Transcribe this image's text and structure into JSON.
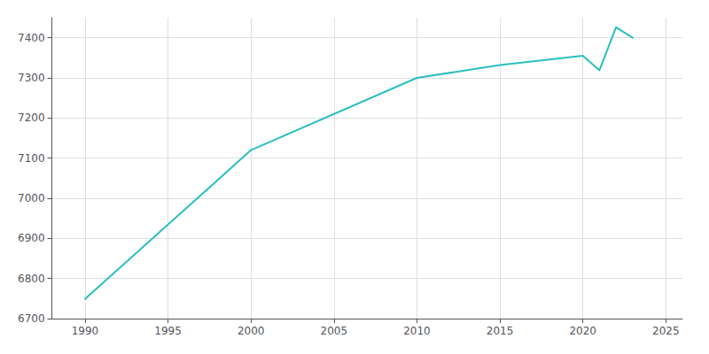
{
  "chart_data": {
    "type": "line",
    "x": [
      1990,
      2000,
      2010,
      2015,
      2020,
      2021,
      2022,
      2023
    ],
    "values": [
      6749,
      7120,
      7300,
      7332,
      7355,
      7319,
      7426,
      7400
    ],
    "color": "#2BBFBF",
    "xlim": [
      1988,
      2026
    ],
    "xticks": [
      1990,
      1995,
      2000,
      2005,
      2010,
      2015,
      2020,
      2025
    ],
    "ylim": [
      6700,
      7450
    ],
    "yticks": [
      6700,
      6800,
      6900,
      7000,
      7100,
      7200,
      7300,
      7400
    ],
    "grid": true
  }
}
